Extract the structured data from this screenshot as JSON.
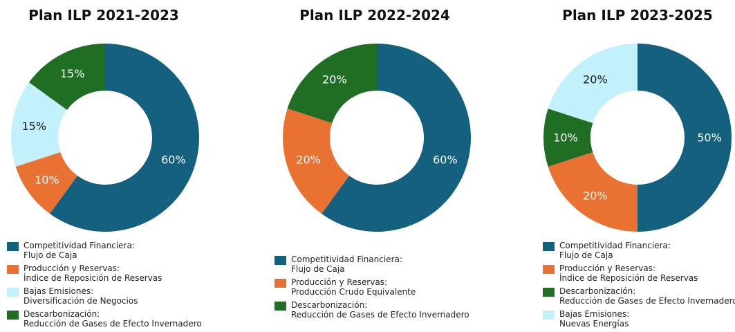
{
  "colors": {
    "competitividad": "#14607f",
    "produccion": "#e97132",
    "bajas_emisiones": "#c2f1fb",
    "descarbonizacion": "#1f6e24"
  },
  "chart_data": [
    {
      "type": "pie",
      "title": "Plan ILP 2021-2023",
      "slices": [
        {
          "value": 60,
          "label": "60%",
          "color": "#14607f",
          "label_color": "#ffffff"
        },
        {
          "value": 10,
          "label": "10%",
          "color": "#e97132",
          "label_color": "#ffffff"
        },
        {
          "value": 15,
          "label": "15%",
          "color": "#c2f1fb",
          "label_color": "#1a1a1a"
        },
        {
          "value": 15,
          "label": "15%",
          "color": "#1f6e24",
          "label_color": "#ffffff"
        }
      ],
      "legend": [
        {
          "line1": "Competitividad Financiera:",
          "line2": "Flujo de Caja",
          "color": "#14607f"
        },
        {
          "line1": "Producción y Reservas:",
          "line2": "Índice de Reposición de Reservas",
          "color": "#e97132"
        },
        {
          "line1": "Bajas Emisiones:",
          "line2": "Diversificación de Negocios",
          "color": "#c2f1fb"
        },
        {
          "line1": "Descarbonización:",
          "line2": " Reducción de Gases de Efecto Invernadero",
          "color": "#1f6e24"
        }
      ]
    },
    {
      "type": "pie",
      "title": "Plan ILP 2022-2024",
      "slices": [
        {
          "value": 60,
          "label": "60%",
          "color": "#14607f",
          "label_color": "#ffffff"
        },
        {
          "value": 20,
          "label": "20%",
          "color": "#e97132",
          "label_color": "#ffffff"
        },
        {
          "value": 20,
          "label": "20%",
          "color": "#1f6e24",
          "label_color": "#ffffff"
        }
      ],
      "legend": [
        {
          "line1": "Competitividad Financiera:",
          "line2": "Flujo de Caja",
          "color": "#14607f"
        },
        {
          "line1": "Producción y Reservas:",
          "line2": "Producción Crudo Equivalente",
          "color": "#e97132"
        },
        {
          "line1": "Descarbonización:",
          "line2": "Reducción de Gases de Efecto Invernadero",
          "color": "#1f6e24"
        }
      ]
    },
    {
      "type": "pie",
      "title": "Plan ILP 2023-2025",
      "slices": [
        {
          "value": 50,
          "label": "50%",
          "color": "#14607f",
          "label_color": "#ffffff"
        },
        {
          "value": 20,
          "label": "20%",
          "color": "#e97132",
          "label_color": "#ffffff"
        },
        {
          "value": 10,
          "label": "10%",
          "color": "#1f6e24",
          "label_color": "#ffffff"
        },
        {
          "value": 20,
          "label": "20%",
          "color": "#c2f1fb",
          "label_color": "#1a1a1a"
        }
      ],
      "legend": [
        {
          "line1": "Competitividad Financiera:",
          "line2": "Flujo de Caja",
          "color": "#14607f"
        },
        {
          "line1": "Producción y Reservas:",
          "line2": " Índice de Reposición de Reservas",
          "color": "#e97132"
        },
        {
          "line1": "Descarbonización:",
          "line2": "Reducción de Gases de Efecto Invernadero",
          "color": "#1f6e24"
        },
        {
          "line1": "Bajas Emisiones:",
          "line2": "Nuevas Energías",
          "color": "#c2f1fb"
        }
      ]
    }
  ]
}
